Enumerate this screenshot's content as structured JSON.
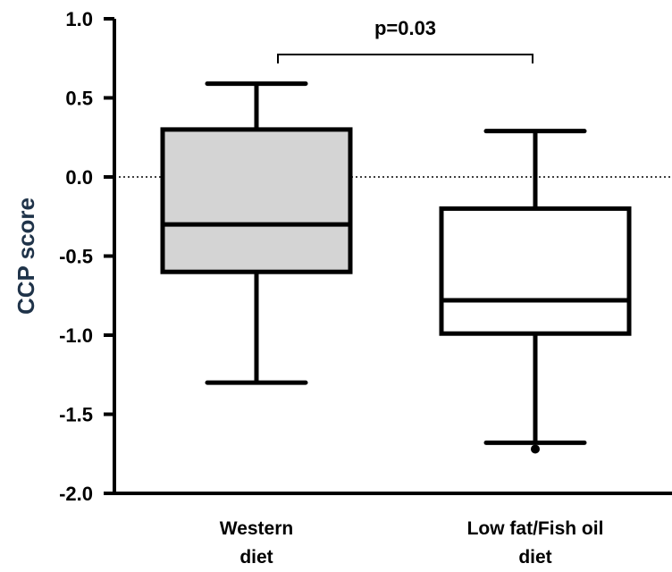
{
  "chart_data": {
    "type": "box",
    "ylabel": "CCP score",
    "ylim": [
      -2.0,
      1.0
    ],
    "yticks": [
      "1.0",
      "0.5",
      "0.0",
      "-0.5",
      "-1.0",
      "-1.5",
      "-2.0"
    ],
    "reference_line": 0.0,
    "categories": [
      {
        "line1": "Western",
        "line2": "diet"
      },
      {
        "line1": "Low fat/Fish oil",
        "line2": "diet"
      }
    ],
    "boxes": [
      {
        "whisker_low": -1.3,
        "q1": -0.6,
        "median": -0.3,
        "q3": 0.3,
        "whisker_high": 0.59,
        "fill": "#d4d4d4",
        "outliers": []
      },
      {
        "whisker_low": -1.68,
        "q1": -0.99,
        "median": -0.78,
        "q3": -0.2,
        "whisker_high": 0.29,
        "fill": "#ffffff",
        "outliers": [
          -1.72
        ]
      }
    ],
    "annotation": {
      "text": "p=0.03"
    }
  },
  "colors": {
    "axis": "#000000",
    "ylabel": "#1f3349",
    "reference_line": "#000000"
  }
}
